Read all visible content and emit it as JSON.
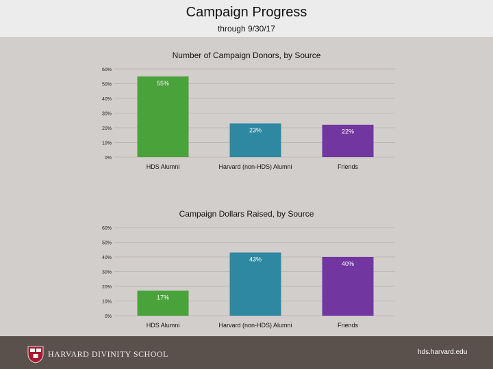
{
  "header": {
    "title": "Campaign Progress",
    "subtitle": "through 9/30/17"
  },
  "footer": {
    "school_name": "HARVARD DIVINITY SCHOOL",
    "url": "hds.harvard.edu"
  },
  "colors": {
    "page_background": "#d2cecb",
    "header_background": "#ececec",
    "footer_background": "#5b514c",
    "hds_alumni": "#4aa23a",
    "harvard_alumni": "#2e88a2",
    "friends": "#7236a0"
  },
  "chart_data": [
    {
      "type": "bar",
      "title": "Number of Campaign Donors, by Source",
      "categories": [
        "HDS Alumni",
        "Harvard (non-HDS) Alumni",
        "Friends"
      ],
      "values": [
        55,
        23,
        22
      ],
      "value_labels": [
        "55%",
        "23%",
        "22%"
      ],
      "ylim": [
        0,
        60
      ],
      "yticks": [
        "0%",
        "10%",
        "20%",
        "30%",
        "40%",
        "50%",
        "60%"
      ],
      "grid": true,
      "legend": "none"
    },
    {
      "type": "bar",
      "title": "Campaign Dollars Raised, by Source",
      "categories": [
        "HDS Alumni",
        "Harvard (non-HDS) Alumni",
        "Friends"
      ],
      "values": [
        17,
        43,
        40
      ],
      "value_labels": [
        "17%",
        "43%",
        "40%"
      ],
      "ylim": [
        0,
        60
      ],
      "yticks": [
        "0%",
        "10%",
        "20%",
        "30%",
        "40%",
        "50%",
        "60%"
      ],
      "grid": true,
      "legend": "none"
    }
  ]
}
